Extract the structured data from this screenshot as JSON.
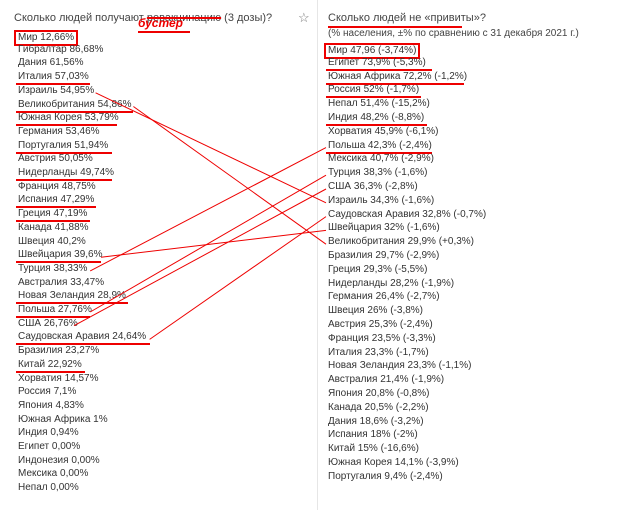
{
  "left": {
    "title_pre": "Сколько людей получают ",
    "title_strike": "ревакцинацию",
    "title_post": " (3 дозы)?",
    "handwritten": "бустер",
    "star_icon": "star-outline-icon",
    "rows": [
      "Мир 12,66%",
      "Гибралтар 86,68%",
      "Дания 61,56%",
      "Италия 57,03%",
      "Израиль 54,95%",
      "Великобритания 54,86%",
      "Южная Корея 53,79%",
      "Германия 53,46%",
      "Португалия 51,94%",
      "Австрия 50,05%",
      "Нидерланды 49,74%",
      "Франция 48,75%",
      "Испания 47,29%",
      "Греция 47,19%",
      "Канада 41,88%",
      "Швеция 40,2%",
      "Швейцария 39,6%",
      "Турция 38,33%",
      "Австралия 33,47%",
      "Новая Зеландия 28,9%",
      "Польша 27,76%",
      "США 26,76%",
      "Саудовская Аравия 24,64%",
      "Бразилия 23,27%",
      "Китай 22,92%",
      "Хорватия 14,57%",
      "Россия 7,1%",
      "Япония 4,83%",
      "Южная Африка 1%",
      "Индия 0,94%",
      "Египет 0,00%",
      "Индонезия 0,00%",
      "Мексика 0,00%",
      "Непал 0,00%"
    ]
  },
  "right": {
    "title": "Сколько людей не «привиты»?",
    "subtitle": "(% населения, ±% по сравнению с 31 декабря 2021 г.)",
    "rows": [
      "Мир 47,96 (-3,74%)",
      "Египет 73,9% (-5,3%)",
      "Южная Африка 72,2% (-1,2%)",
      "Россия 52% (-1,7%)",
      "Непал 51,4% (-15,2%)",
      "Индия 48,2% (-8,8%)",
      "Хорватия 45,9% (-6,1%)",
      "Польша 42,3% (-2,4%)",
      "Мексика 40,7% (-2,9%)",
      "Турция 38,3% (-1,6%)",
      "США 36,3% (-2,8%)",
      "Израиль 34,3% (-1,6%)",
      "Саудовская Аравия 32,8% (-0,7%)",
      "Швейцария 32% (-1,6%)",
      "Великобритания 29,9% (+0,3%)",
      "Бразилия 29,7% (-2,9%)",
      "Греция 29,3% (-5,5%)",
      "Нидерланды 28,2% (-1,9%)",
      "Германия 26,4% (-2,7%)",
      "Швеция 26% (-3,8%)",
      "Австрия 25,3% (-2,4%)",
      "Франция 23,5% (-3,3%)",
      "Италия 23,3% (-1,7%)",
      "Новая Зеландия 23,3% (-1,1%)",
      "Австралия 21,4% (-1,9%)",
      "Япония 20,8% (-0,8%)",
      "Канада 20,5% (-2,2%)",
      "Дания 18,6% (-3,2%)",
      "Испания 18% (-2%)",
      "Китай 15% (-16,6%)",
      "Южная Корея 14,1% (-3,9%)",
      "Португалия 9,4% (-2,4%)"
    ]
  }
}
